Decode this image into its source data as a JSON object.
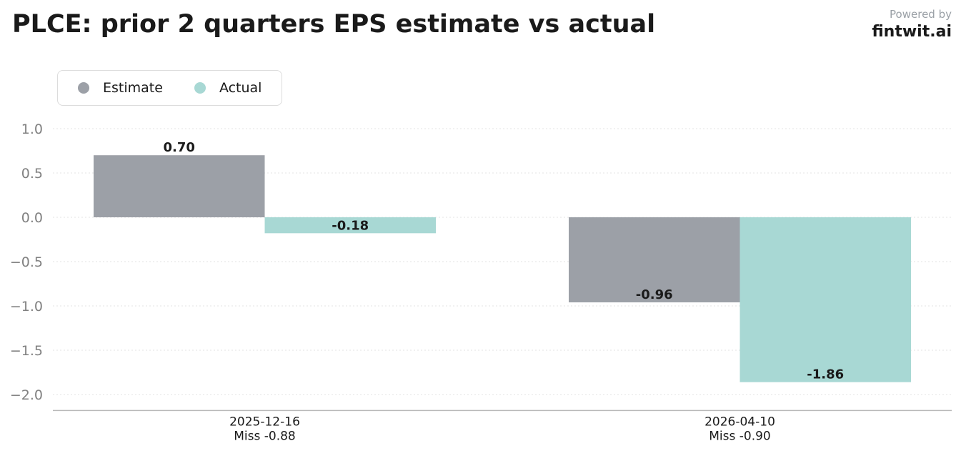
{
  "header": {
    "title": "PLCE: prior 2 quarters EPS estimate vs actual",
    "powered_by": "Powered by",
    "brand": "fintwit.ai"
  },
  "chart_data": {
    "type": "bar",
    "title": "PLCE: prior 2 quarters EPS estimate vs actual",
    "categories": [
      "2025-12-16",
      "2026-04-10"
    ],
    "category_notes": [
      "Miss -0.88",
      "Miss -0.90"
    ],
    "series": [
      {
        "name": "Estimate",
        "color": "#9ca0a7",
        "values": [
          0.7,
          -0.96
        ],
        "labels": [
          "0.70",
          "-0.96"
        ]
      },
      {
        "name": "Actual",
        "color": "#a8d8d4",
        "values": [
          -0.18,
          -1.86
        ],
        "labels": [
          "-0.18",
          "-1.86"
        ]
      }
    ],
    "ylim": [
      -2.18,
      1.0
    ],
    "yticks": [
      1.0,
      0.5,
      0.0,
      -0.5,
      -1.0,
      -1.5,
      -2.0
    ],
    "ytick_labels": [
      "1.0",
      "0.5",
      "0.0",
      "−0.5",
      "−1.0",
      "−1.5",
      "−2.0"
    ],
    "xlabel": "",
    "ylabel": "",
    "grid": true,
    "legend": "top-left"
  }
}
